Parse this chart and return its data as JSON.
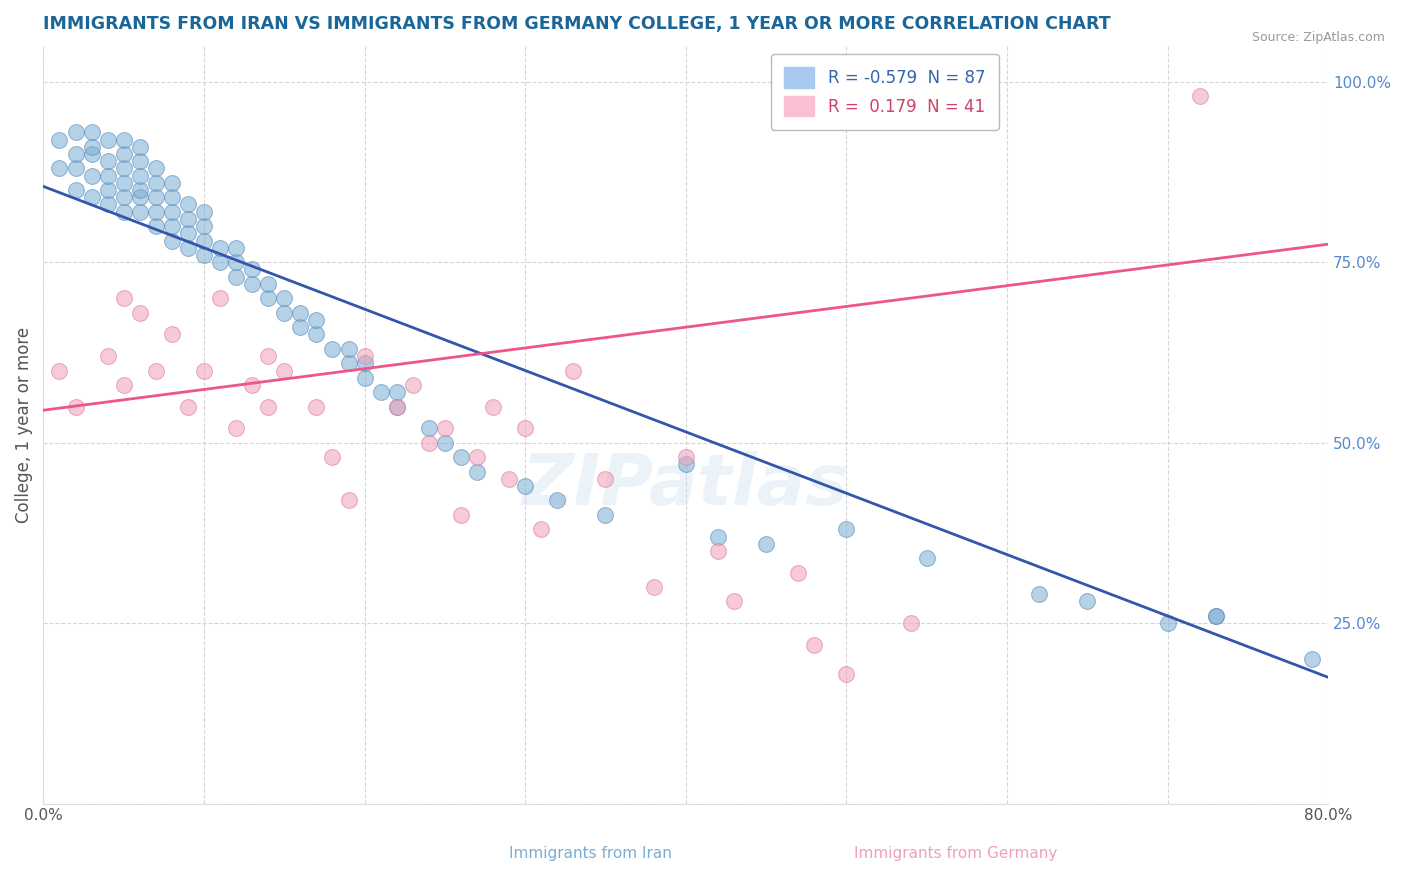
{
  "title": "IMMIGRANTS FROM IRAN VS IMMIGRANTS FROM GERMANY COLLEGE, 1 YEAR OR MORE CORRELATION CHART",
  "source": "Source: ZipAtlas.com",
  "ylabel": "College, 1 year or more",
  "xlim": [
    0.0,
    0.8
  ],
  "ylim": [
    0.0,
    1.05
  ],
  "x_ticks": [
    0.0,
    0.1,
    0.2,
    0.3,
    0.4,
    0.5,
    0.6,
    0.7,
    0.8
  ],
  "x_tick_labels": [
    "0.0%",
    "",
    "",
    "",
    "",
    "",
    "",
    "",
    "80.0%"
  ],
  "y_ticks": [
    0.0,
    0.25,
    0.5,
    0.75,
    1.0
  ],
  "right_y_tick_labels": [
    "",
    "25.0%",
    "50.0%",
    "75.0%",
    "100.0%"
  ],
  "iran_color": "#7aadd4",
  "iran_edge_color": "#5588bb",
  "germany_color": "#f0a0b8",
  "germany_edge_color": "#dd7799",
  "iran_line_color": "#3355aa",
  "germany_line_color": "#ee5588",
  "background_color": "#ffffff",
  "grid_color": "#cccccc",
  "title_color": "#1a6699",
  "right_ytick_color": "#5588cc",
  "watermark_text": "ZIPatlas",
  "legend_iran_label": "R = -0.579  N = 87",
  "legend_germany_label": "R =  0.179  N = 41",
  "legend_iran_patch": "#a8c8f0",
  "legend_germany_patch": "#f8c0d0",
  "legend_iran_text_color": "#3366aa",
  "legend_germany_text_color": "#cc4466",
  "iran_line_x0": 0.0,
  "iran_line_y0": 0.855,
  "iran_line_x1": 0.8,
  "iran_line_y1": 0.175,
  "germany_line_x0": 0.0,
  "germany_line_y0": 0.545,
  "germany_line_x1": 0.8,
  "germany_line_y1": 0.775,
  "iran_scatter_x": [
    0.01,
    0.01,
    0.02,
    0.02,
    0.02,
    0.02,
    0.03,
    0.03,
    0.03,
    0.03,
    0.03,
    0.04,
    0.04,
    0.04,
    0.04,
    0.04,
    0.05,
    0.05,
    0.05,
    0.05,
    0.05,
    0.05,
    0.06,
    0.06,
    0.06,
    0.06,
    0.06,
    0.06,
    0.07,
    0.07,
    0.07,
    0.07,
    0.07,
    0.08,
    0.08,
    0.08,
    0.08,
    0.08,
    0.09,
    0.09,
    0.09,
    0.09,
    0.1,
    0.1,
    0.1,
    0.1,
    0.11,
    0.11,
    0.12,
    0.12,
    0.12,
    0.13,
    0.13,
    0.14,
    0.14,
    0.15,
    0.15,
    0.16,
    0.16,
    0.17,
    0.17,
    0.18,
    0.19,
    0.19,
    0.2,
    0.2,
    0.21,
    0.22,
    0.22,
    0.24,
    0.25,
    0.26,
    0.27,
    0.3,
    0.32,
    0.35,
    0.4,
    0.42,
    0.45,
    0.5,
    0.55,
    0.62,
    0.65,
    0.7,
    0.73,
    0.73,
    0.79
  ],
  "iran_scatter_y": [
    0.88,
    0.92,
    0.85,
    0.88,
    0.9,
    0.93,
    0.84,
    0.87,
    0.9,
    0.91,
    0.93,
    0.83,
    0.85,
    0.87,
    0.89,
    0.92,
    0.82,
    0.84,
    0.86,
    0.88,
    0.9,
    0.92,
    0.82,
    0.84,
    0.85,
    0.87,
    0.89,
    0.91,
    0.8,
    0.82,
    0.84,
    0.86,
    0.88,
    0.78,
    0.8,
    0.82,
    0.84,
    0.86,
    0.77,
    0.79,
    0.81,
    0.83,
    0.76,
    0.78,
    0.8,
    0.82,
    0.75,
    0.77,
    0.73,
    0.75,
    0.77,
    0.72,
    0.74,
    0.7,
    0.72,
    0.68,
    0.7,
    0.66,
    0.68,
    0.65,
    0.67,
    0.63,
    0.61,
    0.63,
    0.59,
    0.61,
    0.57,
    0.55,
    0.57,
    0.52,
    0.5,
    0.48,
    0.46,
    0.44,
    0.42,
    0.4,
    0.47,
    0.37,
    0.36,
    0.38,
    0.34,
    0.29,
    0.28,
    0.25,
    0.26,
    0.26,
    0.2
  ],
  "germany_scatter_x": [
    0.01,
    0.02,
    0.04,
    0.05,
    0.05,
    0.06,
    0.07,
    0.08,
    0.09,
    0.1,
    0.11,
    0.12,
    0.13,
    0.14,
    0.14,
    0.15,
    0.17,
    0.18,
    0.19,
    0.2,
    0.22,
    0.23,
    0.24,
    0.25,
    0.26,
    0.27,
    0.28,
    0.29,
    0.3,
    0.31,
    0.33,
    0.35,
    0.38,
    0.4,
    0.42,
    0.43,
    0.47,
    0.48,
    0.5,
    0.54,
    0.72
  ],
  "germany_scatter_y": [
    0.6,
    0.55,
    0.62,
    0.7,
    0.58,
    0.68,
    0.6,
    0.65,
    0.55,
    0.6,
    0.7,
    0.52,
    0.58,
    0.62,
    0.55,
    0.6,
    0.55,
    0.48,
    0.42,
    0.62,
    0.55,
    0.58,
    0.5,
    0.52,
    0.4,
    0.48,
    0.55,
    0.45,
    0.52,
    0.38,
    0.6,
    0.45,
    0.3,
    0.48,
    0.35,
    0.28,
    0.32,
    0.22,
    0.18,
    0.25,
    0.98
  ]
}
